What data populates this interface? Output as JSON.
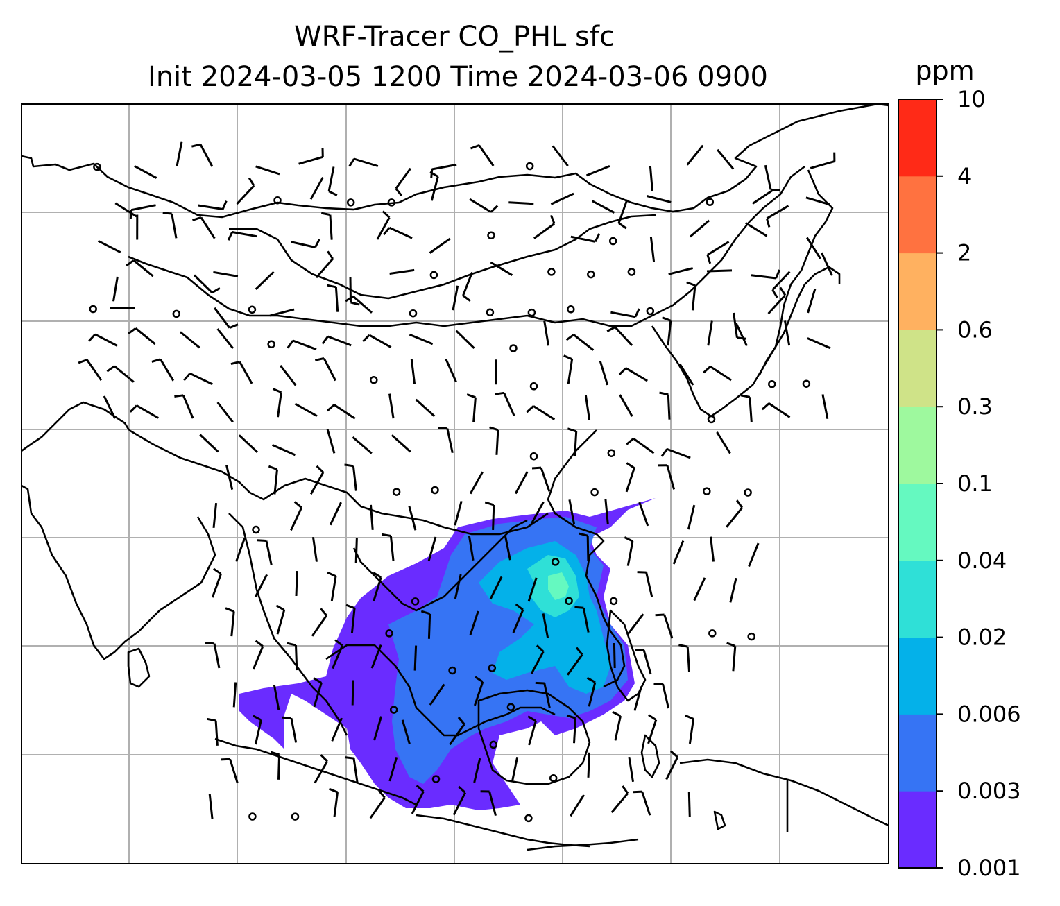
{
  "title": {
    "line1": "WRF-Tracer CO_PHL sfc",
    "line2": "Init 2024-03-05 1200 Time 2024-03-06 0900"
  },
  "map": {
    "projection": "PlateCarree",
    "gridlines": true,
    "features": [
      "coastlines",
      "country-borders"
    ],
    "field": "CO_PHL tracer concentration (filled contours)",
    "overlay": "surface wind barbs",
    "wind_barbs": {
      "row_1": {
        "dir": [
          250,
          200,
          260,
          250,
          250,
          0,
          250,
          70,
          250,
          110,
          70,
          120,
          0,
          70,
          40,
          0,
          20,
          30,
          10,
          0,
          230
        ]
      },
      "row_2": {
        "dir": [
          200,
          230,
          0,
          0,
          250,
          0,
          0,
          250,
          0,
          180,
          0,
          300,
          0,
          300,
          250,
          0,
          300,
          40,
          250,
          10,
          300
        ]
      }
    }
  },
  "colorbar": {
    "unit_label": "ppm",
    "levels": [
      "0.001",
      "0.003",
      "0.006",
      "0.02",
      "0.04",
      "0.1",
      "0.3",
      "0.6",
      "2",
      "4",
      "10"
    ],
    "colors": [
      "#6a2cff",
      "#3674f4",
      "#04b1e9",
      "#2fe0d7",
      "#65f9c0",
      "#9ef99e",
      "#cfe388",
      "#ffb160",
      "#ff7240",
      "#ff2a17"
    ]
  }
}
